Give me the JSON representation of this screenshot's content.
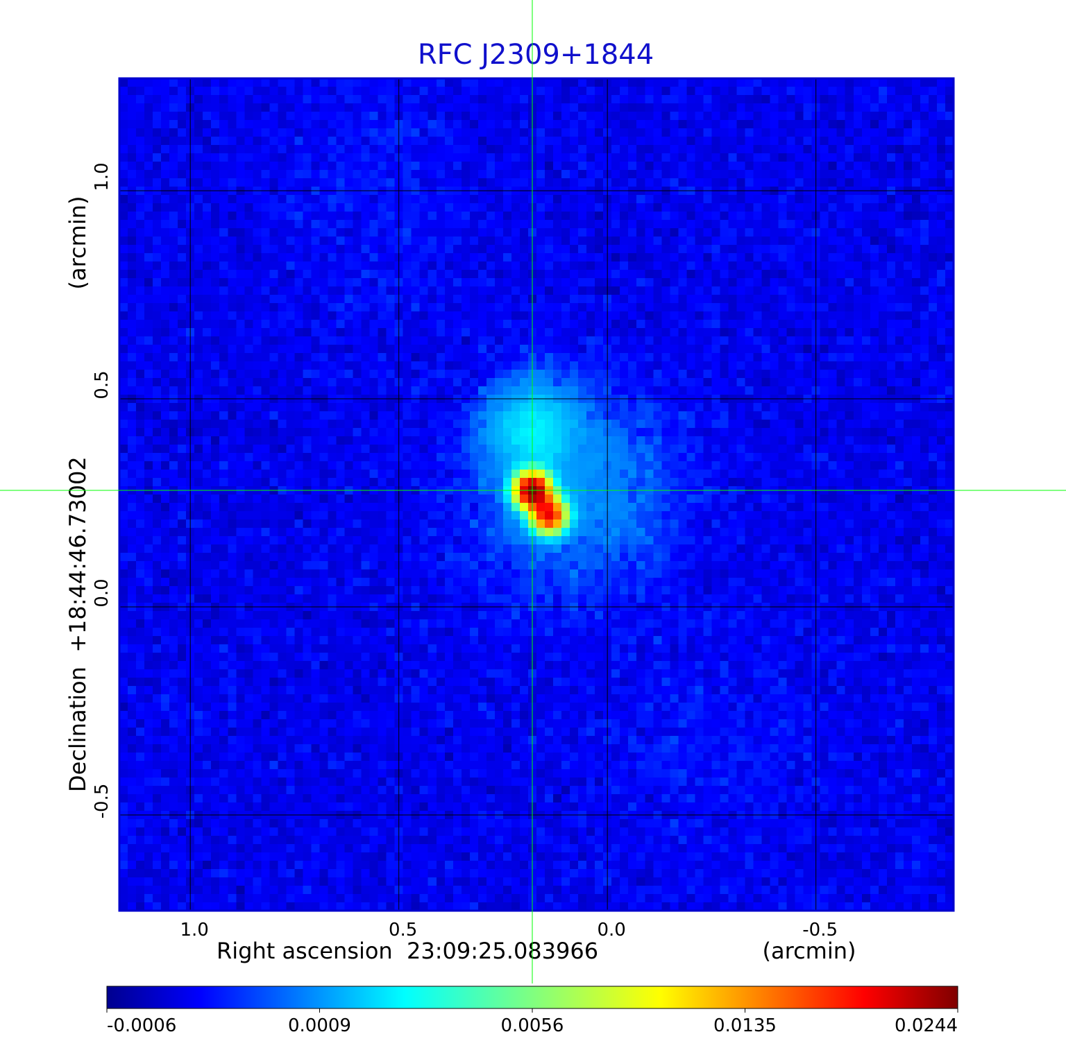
{
  "chart_data": {
    "type": "heatmap",
    "title": "RFC J2309+1844",
    "xlabel": "Right ascension  23:09:25.083966",
    "x_unit": "(arcmin)",
    "ylabel": "Declination  +18:44:46.73002",
    "y_unit": "(arcmin)",
    "xlim": [
      1.17,
      -0.83
    ],
    "ylim": [
      -0.73,
      1.27
    ],
    "x_ticks": [
      1.0,
      0.5,
      0.0,
      -0.5
    ],
    "x_tick_labels": [
      "1.0",
      "0.5",
      "0.0",
      "-0.5"
    ],
    "y_ticks": [
      1.0,
      0.5,
      0.0,
      -0.5
    ],
    "y_tick_labels": [
      "1.0",
      "0.5",
      "0.0",
      "-0.5"
    ],
    "grid": true,
    "crosshair": {
      "x": 0.18,
      "y": 0.28
    },
    "colormap": "jet",
    "colorbar": {
      "orientation": "horizontal",
      "position": "bottom",
      "tick_labels": [
        "-0.0006",
        "0.0009",
        "0.0056",
        "0.0135",
        "0.0244"
      ],
      "min": -0.0006,
      "max": 0.0244
    },
    "sources": [
      {
        "x": 0.18,
        "y": 0.28,
        "peak": 0.0244
      },
      {
        "x": 0.14,
        "y": 0.22,
        "peak": 0.018
      },
      {
        "x": 0.18,
        "y": 0.43,
        "peak": 0.0025
      },
      {
        "x": 0.08,
        "y": 0.28,
        "peak": 0.0011
      }
    ],
    "colors": {
      "title": "#1010cc",
      "frame": "#0000cc",
      "grid": "#000000",
      "crosshair": "#00ff00"
    }
  }
}
